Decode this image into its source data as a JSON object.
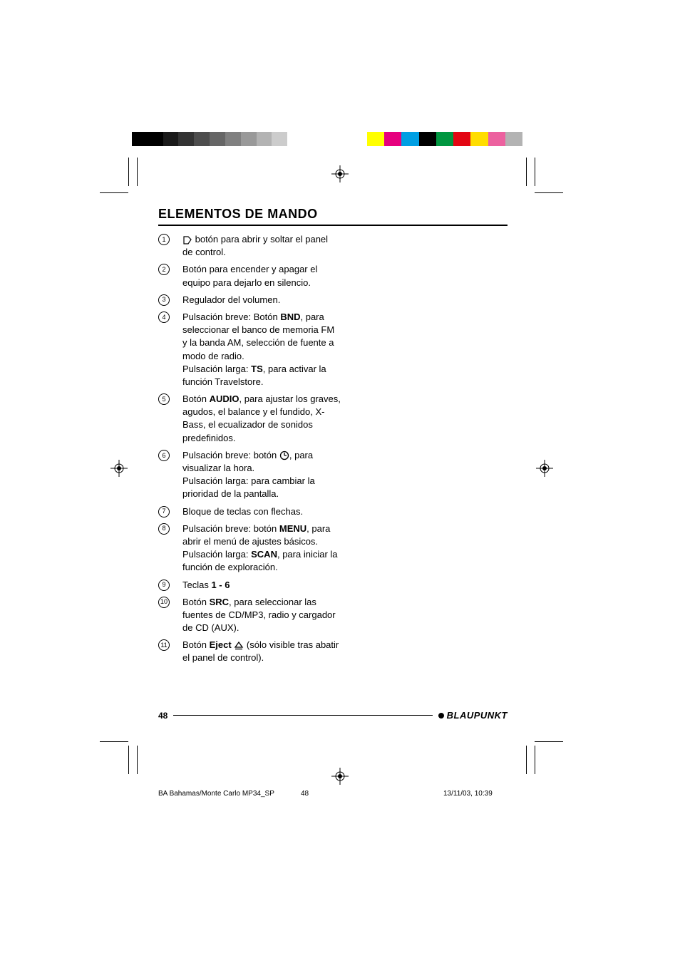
{
  "colorbar_top_left": [
    "#000000",
    "#000000",
    "#1a1a1a",
    "#333333",
    "#4d4d4d",
    "#666666",
    "#808080",
    "#999999",
    "#b3b3b3",
    "#cccccc",
    "#ffffff"
  ],
  "colorbar_top_right": [
    "#ffff00",
    "#e6007e",
    "#009fe3",
    "#000000",
    "#009640",
    "#e30613",
    "#ffdd00",
    "#ec619f",
    "#b3b3b3"
  ],
  "heading": "ELEMENTOS DE MANDO",
  "items": [
    {
      "n": "1",
      "html": "<svg class='inline-icon' viewBox='0 0 14 14'><path d='M2 2 L2 12 L8 12 L12 6 L8 2 Z' fill='none' stroke='#000' stroke-width='1.2'/></svg> botón para abrir y soltar el panel de control."
    },
    {
      "n": "2",
      "html": "Botón para encender y apagar el equipo para dejarlo en silencio."
    },
    {
      "n": "3",
      "html": "Regulador del volumen."
    },
    {
      "n": "4",
      "html": "Pulsación breve: Botón <span class='bold'>BND</span>, para seleccionar el banco de memoria FM y la banda AM, selección de fuente a modo de radio.<br>Pulsación larga: <span class='bold'>TS</span>, para activar la función Travelstore."
    },
    {
      "n": "5",
      "html": "Botón <span class='bold'>AUDIO</span>, para ajustar los graves, agudos, el balance y el fundido, X-Bass, el ecualizador de sonidos predefinidos."
    },
    {
      "n": "6",
      "html": "Pulsación breve: botón <svg class='inline-icon' viewBox='0 0 14 14'><circle cx='7' cy='7' r='5.5' fill='none' stroke='#000' stroke-width='1.3'/><line x1='7' y1='7' x2='7' y2='3' stroke='#000' stroke-width='1.3'/><line x1='7' y1='7' x2='10' y2='7' stroke='#000' stroke-width='1.3'/></svg>, para visualizar la hora.<br>Pulsación larga: para cambiar la prioridad de la pantalla."
    },
    {
      "n": "7",
      "html": "Bloque de teclas con flechas."
    },
    {
      "n": "8",
      "html": "Pulsación breve: botón <span class='bold'>MENU</span>, para abrir el menú de ajustes básicos.<br>Pulsación larga: <span class='bold'>SCAN</span>, para iniciar la función de exploración."
    },
    {
      "n": "9",
      "html": "Teclas <span class='bold'>1 - 6</span>"
    },
    {
      "n": "10",
      "html": "Botón <span class='bold'>SRC</span>, para seleccionar las fuentes de CD/MP3, radio y cargador de CD (AUX)."
    },
    {
      "n": "11",
      "html": "Botón <span class='bold'>Eject</span> <svg class='inline-icon' viewBox='0 0 14 14'><path d='M7 2 L12 9 L2 9 Z' fill='none' stroke='#000' stroke-width='1.3'/><line x1='2' y1='11.5' x2='12' y2='11.5' stroke='#000' stroke-width='1.3'/></svg> (sólo visible tras abatir el panel de control)."
    }
  ],
  "page_number": "48",
  "brand": "BLAUPUNKT",
  "slug_doc": "BA Bahamas/Monte Carlo MP34_SP",
  "slug_page": "48",
  "slug_date": "13/11/03, 10:39"
}
